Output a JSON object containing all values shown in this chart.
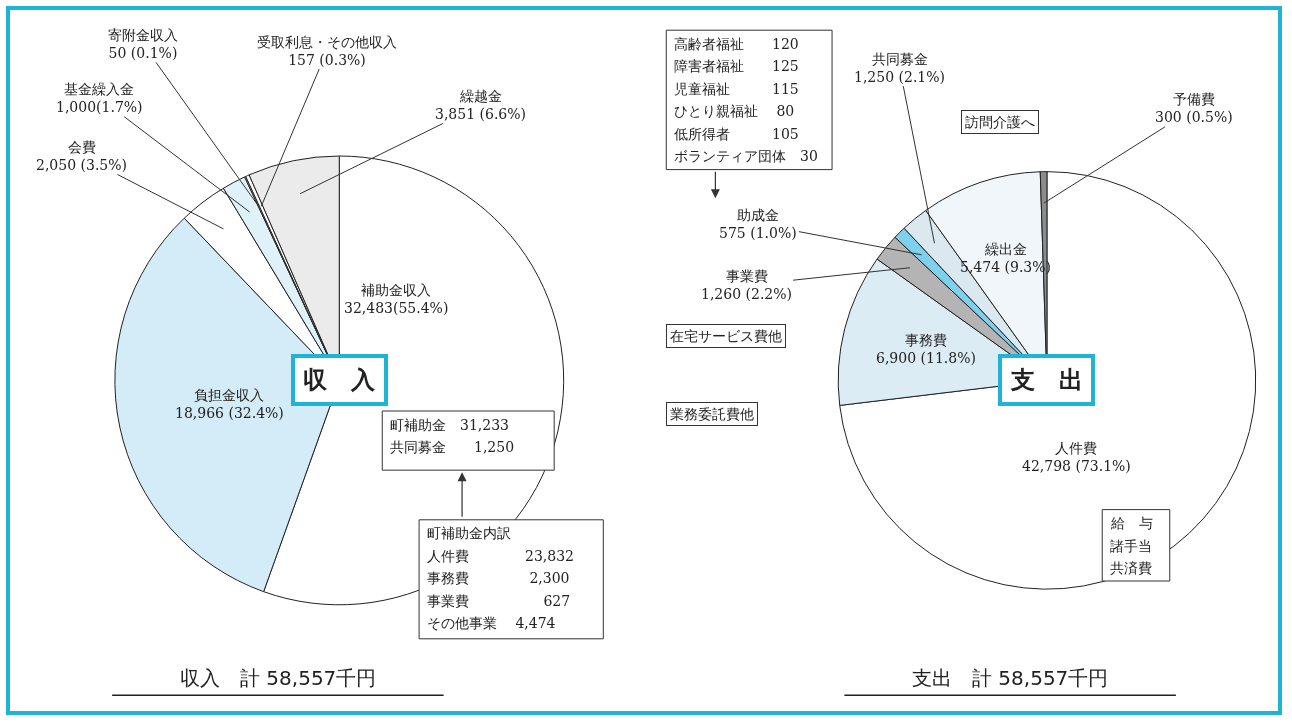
{
  "chart_data": [
    {
      "type": "pie",
      "title": "収　入",
      "categories": [
        "補助金収入",
        "負担金収入",
        "会費",
        "基金繰入金",
        "寄附金収入",
        "受取利息・その他収入",
        "繰越金"
      ],
      "values": [
        32483,
        18966,
        2050,
        1000,
        50,
        157,
        3851
      ],
      "value_labels": [
        "32,483(55.4%)",
        "18,966 (32.4%)",
        "2,050 (3.5%)",
        "1,000(1.7%)",
        "50 (0.1%)",
        "157 (0.3%)",
        "3,851 (6.6%)"
      ],
      "colors": [
        "#ffffff",
        "#d4ecf7",
        "#ffffff",
        "#dff2fa",
        "#ffffff",
        "#ffffff",
        "#ebebeb"
      ],
      "legend": false,
      "annotations": [
        "町補助金　31,233",
        "共同募金　　1,250",
        "町補助金内訳",
        "人件費　　　　23,832",
        "事務費　　　　 2,300",
        "事業費　　　　　 627",
        "その他事業　 4,474",
        "収入　計 58,557千円"
      ]
    },
    {
      "type": "pie",
      "title": "支　出",
      "categories": [
        "人件費",
        "事務費",
        "事業費",
        "助成金",
        "共同募金",
        "繰出金",
        "予備費"
      ],
      "values": [
        42798,
        6900,
        1260,
        575,
        1250,
        5474,
        300
      ],
      "value_labels": [
        "42,798 (73.1%)",
        "6,900 (11.8%)",
        "1,260 (2.2%)",
        "575 (1.0%)",
        "1,250 (2.1%)",
        "5,474 (9.3%)",
        "300 (0.5%)"
      ],
      "colors": [
        "#ffffff",
        "#dcecf5",
        "#b4b4b4",
        "#7fd0ec",
        "#dce8ef",
        "#f0f6f9",
        "#8c8c8c"
      ],
      "legend": false,
      "annotations": [
        "高齢者福祉　　120",
        "障害者福祉　　125",
        "児童福祉　　　115",
        "ひとり親福祉　 80",
        "低所得者　　　105",
        "ボランティア団体　30",
        "訪問介護へ",
        "在宅サービス費他",
        "業務委託費他",
        "給　与",
        "諸手当",
        "共済費",
        "支出　計 58,557千円"
      ]
    }
  ]
}
